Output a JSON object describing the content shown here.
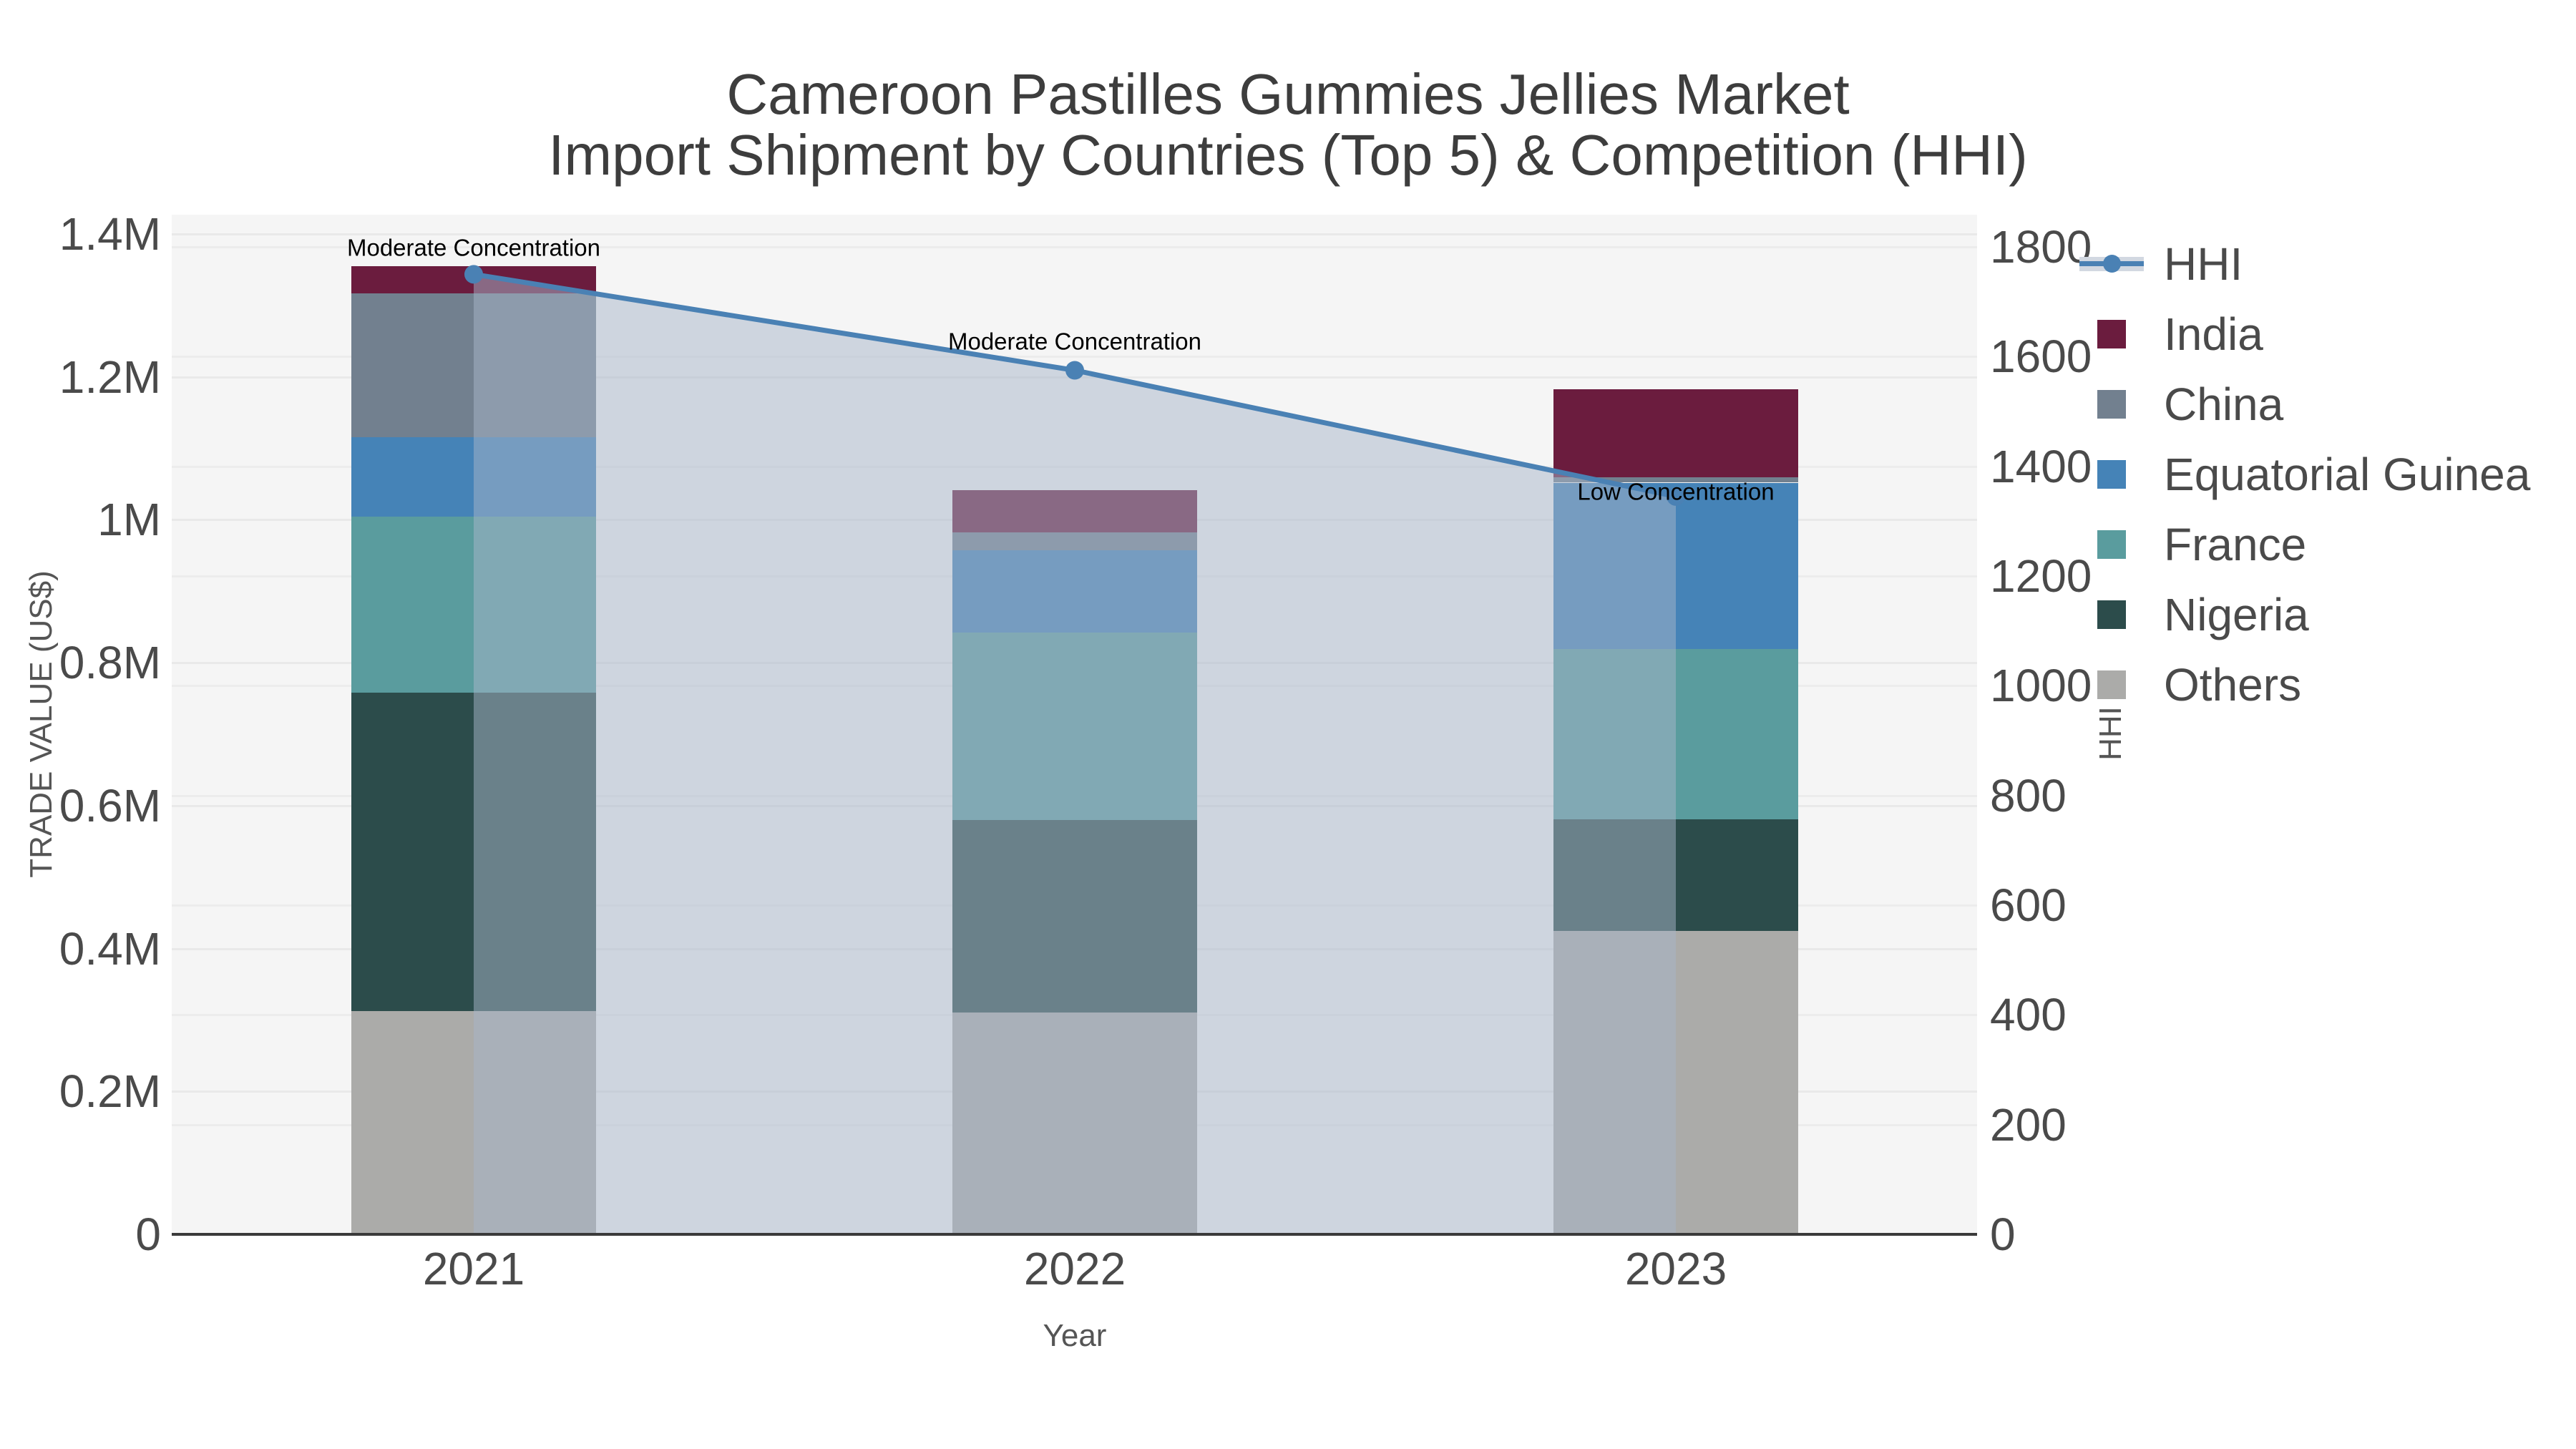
{
  "title": {
    "line1": "Cameroon Pastilles Gummies Jellies Market",
    "line2": "Import Shipment by Countries (Top 5) & Competition (HHI)"
  },
  "axes": {
    "x_title": "Year",
    "y_left_title": "TRADE VALUE (US$)",
    "y_right_title": "HHI"
  },
  "chart_data": {
    "type": "bar+line",
    "title": "Cameroon Pastilles Gummies Jellies Market — Import Shipment by Countries (Top 5) & Competition (HHI)",
    "categories": [
      "2021",
      "2022",
      "2023"
    ],
    "stack_order_bottom_to_top": [
      "Others",
      "Nigeria",
      "France",
      "Equatorial Guinea",
      "China",
      "India"
    ],
    "series": [
      {
        "name": "Others",
        "color": "#ABABA9",
        "values": [
          312000,
          310000,
          425000
        ]
      },
      {
        "name": "Nigeria",
        "color": "#2C4C4B",
        "values": [
          446000,
          270000,
          156000
        ]
      },
      {
        "name": "France",
        "color": "#5A9C9E",
        "values": [
          246000,
          262000,
          238000
        ]
      },
      {
        "name": "Equatorial Guinea",
        "color": "#4583B7",
        "values": [
          112000,
          115000,
          233000
        ]
      },
      {
        "name": "China",
        "color": "#72808F",
        "values": [
          201000,
          25000,
          8000
        ]
      },
      {
        "name": "India",
        "color": "#6B1C3E",
        "values": [
          38000,
          59000,
          123000
        ]
      }
    ],
    "totals": [
      1355000,
      1041000,
      1183000
    ],
    "hhi": {
      "name": "HHI",
      "color": "#4A81B4",
      "area_fill": "rgba(168,181,201,0.5)",
      "values": [
        1750,
        1575,
        1345
      ]
    },
    "annotations": [
      {
        "year": "2021",
        "text": "Moderate Concentration"
      },
      {
        "year": "2022",
        "text": "Moderate Concentration"
      },
      {
        "year": "2023",
        "text": "Low Concentration"
      }
    ],
    "y_left": {
      "label": "TRADE VALUE (US$)",
      "lim": [
        0,
        1400000
      ],
      "grid": true,
      "ticks": [
        {
          "v": 0,
          "label": "0"
        },
        {
          "v": 200000,
          "label": "0.2M"
        },
        {
          "v": 400000,
          "label": "0.4M"
        },
        {
          "v": 600000,
          "label": "0.6M"
        },
        {
          "v": 800000,
          "label": "0.8M"
        },
        {
          "v": 1000000,
          "label": "1M"
        },
        {
          "v": 1200000,
          "label": "1.2M"
        },
        {
          "v": 1400000,
          "label": "1.4M"
        }
      ]
    },
    "y_right": {
      "label": "HHI",
      "lim": [
        0,
        1800
      ],
      "grid": true,
      "ticks": [
        {
          "v": 0,
          "label": "0"
        },
        {
          "v": 200,
          "label": "200"
        },
        {
          "v": 400,
          "label": "400"
        },
        {
          "v": 600,
          "label": "600"
        },
        {
          "v": 800,
          "label": "800"
        },
        {
          "v": 1000,
          "label": "1000"
        },
        {
          "v": 1200,
          "label": "1200"
        },
        {
          "v": 1400,
          "label": "1400"
        },
        {
          "v": 1600,
          "label": "1600"
        },
        {
          "v": 1800,
          "label": "1800"
        }
      ]
    },
    "legend_order": [
      "HHI",
      "India",
      "China",
      "Equatorial Guinea",
      "France",
      "Nigeria",
      "Others"
    ],
    "legend_position": "right"
  }
}
